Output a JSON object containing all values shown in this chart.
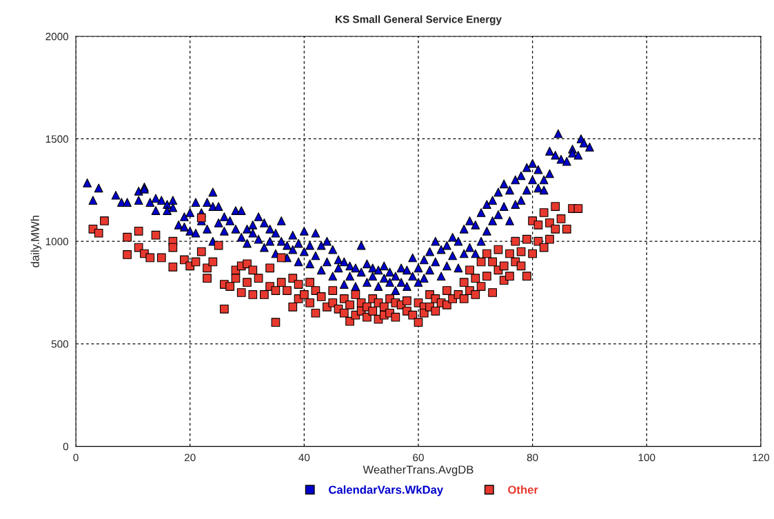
{
  "chart_data": {
    "type": "scatter",
    "title": "KS Small General Service Energy",
    "xlabel": "WeatherTrans.AvgDB",
    "ylabel": "daily.MWh",
    "xlim": [
      0,
      120
    ],
    "xticks": [
      0,
      20,
      40,
      60,
      80,
      100,
      120
    ],
    "ylim": [
      0,
      2000
    ],
    "yticks": [
      0,
      500,
      1000,
      1500,
      2000
    ],
    "grid": true,
    "legend": "bottom",
    "series": [
      {
        "name": "CalendarVars.WkDay",
        "color": "#0000cc",
        "marker": "triangle",
        "x": [
          2,
          3,
          4,
          7,
          8,
          9,
          11,
          11,
          12,
          12,
          13,
          14,
          14,
          15,
          16,
          16,
          17,
          17,
          18,
          19,
          19,
          20,
          20,
          21,
          21,
          22,
          22,
          23,
          23,
          24,
          24,
          24,
          25,
          25,
          26,
          26,
          27,
          28,
          28,
          29,
          29,
          30,
          30,
          31,
          31,
          32,
          32,
          33,
          33,
          34,
          34,
          35,
          35,
          36,
          36,
          37,
          37,
          38,
          38,
          39,
          39,
          40,
          40,
          41,
          41,
          42,
          42,
          43,
          43,
          44,
          44,
          45,
          45,
          46,
          46,
          47,
          47,
          48,
          48,
          49,
          49,
          50,
          50,
          51,
          51,
          52,
          52,
          53,
          53,
          54,
          54,
          55,
          55,
          56,
          56,
          57,
          57,
          58,
          58,
          59,
          59,
          60,
          60,
          61,
          61,
          62,
          62,
          63,
          63,
          64,
          64,
          65,
          65,
          66,
          66,
          67,
          67,
          68,
          68,
          69,
          69,
          70,
          70,
          71,
          71,
          72,
          72,
          73,
          73,
          74,
          74,
          75,
          75,
          76,
          76,
          77,
          77,
          78,
          78,
          79,
          79,
          80,
          80,
          81,
          81,
          82,
          82,
          83,
          83,
          84,
          84.5,
          85,
          86,
          87,
          87,
          88,
          88.5,
          89,
          90
        ],
        "values": [
          1285,
          1200,
          1260,
          1225,
          1190,
          1190,
          1245,
          1200,
          1265,
          1255,
          1190,
          1210,
          1150,
          1200,
          1180,
          1150,
          1200,
          1165,
          1080,
          1070,
          1120,
          1140,
          1050,
          1190,
          1040,
          1140,
          1100,
          1190,
          1060,
          1170,
          1240,
          1000,
          1170,
          1090,
          1120,
          1050,
          1100,
          1150,
          1060,
          1150,
          1020,
          1060,
          990,
          1080,
          1040,
          1120,
          1010,
          1090,
          970,
          1060,
          1000,
          1040,
          940,
          1100,
          1000,
          980,
          920,
          1030,
          960,
          990,
          900,
          1050,
          950,
          980,
          890,
          1040,
          930,
          980,
          860,
          1000,
          900,
          960,
          830,
          910,
          870,
          900,
          790,
          880,
          830,
          870,
          780,
          980,
          850,
          890,
          800,
          870,
          830,
          860,
          780,
          880,
          820,
          850,
          800,
          830,
          760,
          870,
          800,
          860,
          780,
          920,
          830,
          870,
          800,
          910,
          820,
          950,
          860,
          1000,
          900,
          960,
          830,
          980,
          880,
          1020,
          930,
          1000,
          870,
          1060,
          940,
          1100,
          970,
          1080,
          940,
          1140,
          1000,
          1180,
          1050,
          1200,
          1100,
          1240,
          1130,
          1280,
          1170,
          1250,
          1100,
          1300,
          1180,
          1320,
          1200,
          1360,
          1250,
          1380,
          1300,
          1350,
          1260,
          1300,
          1250,
          1440,
          1330,
          1420,
          1525,
          1400,
          1390,
          1450,
          1430,
          1420,
          1500,
          1480,
          1460
        ]
      },
      {
        "name": "Other",
        "color": "#e8392f",
        "marker": "square",
        "x": [
          3,
          4,
          5,
          9,
          9,
          11,
          11,
          12,
          13,
          14,
          15,
          17,
          17,
          17,
          19,
          20,
          21,
          22,
          22,
          23,
          23,
          24,
          25,
          26,
          26,
          27,
          28,
          28,
          29,
          29,
          30,
          30,
          31,
          31,
          32,
          33,
          34,
          34,
          35,
          35,
          36,
          36,
          37,
          38,
          38,
          39,
          39,
          40,
          41,
          41,
          42,
          42,
          43,
          44,
          45,
          45,
          46,
          47,
          47,
          48,
          48,
          49,
          49,
          50,
          50,
          51,
          51,
          52,
          52,
          53,
          53,
          54,
          54,
          55,
          55,
          56,
          56,
          57,
          58,
          58,
          59,
          60,
          60,
          61,
          61,
          62,
          62,
          63,
          63,
          64,
          65,
          65,
          66,
          67,
          68,
          68,
          69,
          69,
          70,
          70,
          71,
          71,
          72,
          72,
          73,
          73,
          74,
          74,
          75,
          75,
          76,
          76,
          77,
          77,
          78,
          78,
          79,
          79,
          80,
          80,
          81,
          81,
          82,
          82,
          83,
          83,
          84,
          84,
          85,
          86,
          87,
          88
        ],
        "values": [
          1060,
          1040,
          1100,
          1020,
          935,
          1050,
          970,
          940,
          920,
          1030,
          920,
          1000,
          970,
          875,
          910,
          880,
          900,
          950,
          1115,
          820,
          870,
          900,
          980,
          670,
          790,
          780,
          860,
          820,
          880,
          750,
          890,
          800,
          740,
          860,
          820,
          740,
          870,
          780,
          760,
          605,
          920,
          800,
          760,
          820,
          680,
          790,
          720,
          740,
          800,
          700,
          760,
          650,
          730,
          680,
          760,
          700,
          670,
          720,
          650,
          690,
          610,
          740,
          640,
          700,
          660,
          680,
          630,
          720,
          660,
          700,
          620,
          680,
          640,
          720,
          650,
          700,
          630,
          690,
          660,
          710,
          640,
          700,
          605,
          680,
          650,
          740,
          680,
          720,
          660,
          700,
          760,
          690,
          720,
          740,
          800,
          720,
          860,
          760,
          820,
          740,
          900,
          780,
          940,
          830,
          900,
          750,
          960,
          860,
          880,
          810,
          940,
          830,
          1000,
          900,
          950,
          880,
          1010,
          830,
          1100,
          940,
          1080,
          1000,
          1140,
          970,
          1090,
          1010,
          1170,
          1060,
          1110,
          1060,
          1160,
          1160
        ]
      }
    ]
  }
}
